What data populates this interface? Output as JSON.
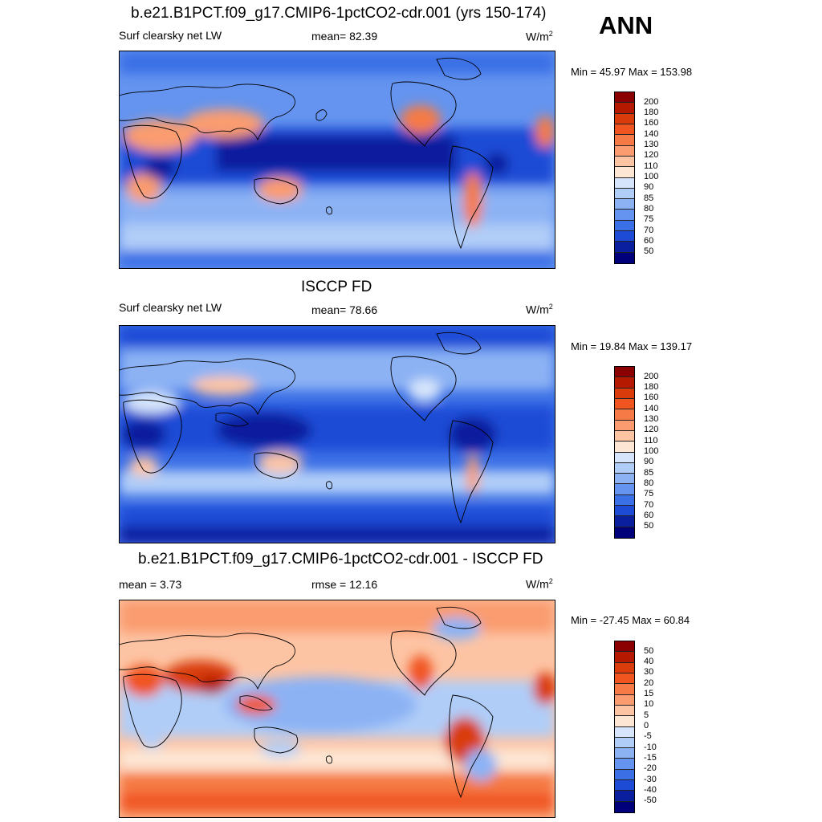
{
  "season": "ANN",
  "panels": [
    {
      "title": "b.e21.B1PCT.f09_g17.CMIP6-1pctCO2-cdr.001 (yrs 150-174)",
      "left_label": "Surf clearsky net LW",
      "center_label": "mean=  82.39",
      "units": "W/m",
      "units_sup": "2",
      "minmax": "Min =  45.97 Max = 153.98",
      "levels": [
        "200",
        "180",
        "160",
        "140",
        "130",
        "120",
        "110",
        "100",
        "90",
        "85",
        "80",
        "75",
        "70",
        "60",
        "50"
      ],
      "colors": [
        "#8b0000",
        "#b51a00",
        "#d93c0a",
        "#f05520",
        "#f57a45",
        "#fa9c70",
        "#fdc4a4",
        "#fde6d4",
        "#d6e5fb",
        "#b0cdf8",
        "#8cb2f4",
        "#6494ef",
        "#3a6fe6",
        "#1e4bd6",
        "#0a1f9e",
        "#00007a"
      ],
      "map_type": "model"
    },
    {
      "title": "ISCCP FD",
      "left_label": "Surf clearsky net LW",
      "center_label": "mean=  78.66",
      "units": "W/m",
      "units_sup": "2",
      "minmax": "Min =  19.84 Max = 139.17",
      "levels": [
        "200",
        "180",
        "160",
        "140",
        "130",
        "120",
        "110",
        "100",
        "90",
        "85",
        "80",
        "75",
        "70",
        "60",
        "50"
      ],
      "colors": [
        "#8b0000",
        "#b51a00",
        "#d93c0a",
        "#f05520",
        "#f57a45",
        "#fa9c70",
        "#fdc4a4",
        "#fde6d4",
        "#d6e5fb",
        "#b0cdf8",
        "#8cb2f4",
        "#6494ef",
        "#3a6fe6",
        "#1e4bd6",
        "#0a1f9e",
        "#00007a"
      ],
      "map_type": "obs"
    },
    {
      "title": "b.e21.B1PCT.f09_g17.CMIP6-1pctCO2-cdr.001 - ISCCP FD",
      "left_label": "mean =   3.73",
      "center_label": "rmse =  12.16",
      "units": "W/m",
      "units_sup": "2",
      "minmax": "Min = -27.45 Max =  60.84",
      "levels": [
        "50",
        "40",
        "30",
        "20",
        "15",
        "10",
        "5",
        "0",
        "-5",
        "-10",
        "-15",
        "-20",
        "-30",
        "-40",
        "-50"
      ],
      "colors": [
        "#8b0000",
        "#b51a00",
        "#d93c0a",
        "#f05520",
        "#f57a45",
        "#fa9c70",
        "#fdc4a4",
        "#fde6d4",
        "#d6e5fb",
        "#b0cdf8",
        "#8cb2f4",
        "#6494ef",
        "#3a6fe6",
        "#1e4bd6",
        "#0a1f9e",
        "#00007a"
      ],
      "map_type": "diff"
    }
  ]
}
